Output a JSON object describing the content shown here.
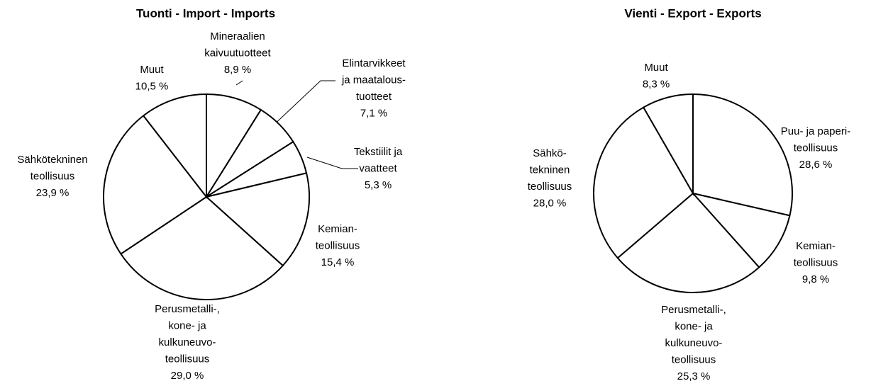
{
  "chart_data": [
    {
      "type": "pie",
      "title": "Tuonti - Import - Imports",
      "categories": [
        [
          "Mineraalien",
          "kaivuutuotteet"
        ],
        [
          "Elintarvikkeet",
          "ja maatalous-",
          "tuotteet"
        ],
        [
          "Tekstiilit ja",
          "vaatteet"
        ],
        [
          "Kemian-",
          "teollisuus"
        ],
        [
          "Perusmetalli-,",
          "kone- ja",
          "kulkuneuvo-",
          "teollisuus"
        ],
        [
          "Sähkötekninen",
          "teollisuus"
        ],
        [
          "Muut"
        ]
      ],
      "values": [
        8.9,
        7.1,
        5.3,
        15.4,
        29.0,
        23.9,
        10.5
      ],
      "value_labels": [
        "8,9 %",
        "7,1 %",
        "5,3 %",
        "15,4 %",
        "29,0 %",
        "23,9 %",
        "10,5 %"
      ],
      "color": "#ffffff"
    },
    {
      "type": "pie",
      "title": "Vienti - Export - Exports",
      "categories": [
        [
          "Puu- ja paperi-",
          "teollisuus"
        ],
        [
          "Kemian-",
          "teollisuus"
        ],
        [
          "Perusmetalli-,",
          "kone- ja",
          "kulkuneuvo-",
          "teollisuus"
        ],
        [
          "Sähkö-",
          "tekninen",
          "teollisuus"
        ],
        [
          "Muut"
        ]
      ],
      "values": [
        28.6,
        9.8,
        25.3,
        28.0,
        8.3
      ],
      "value_labels": [
        "28,6 %",
        "9,8 %",
        "25,3 %",
        "28,0 %",
        "8,3 %"
      ],
      "color": "#ffffff"
    }
  ]
}
